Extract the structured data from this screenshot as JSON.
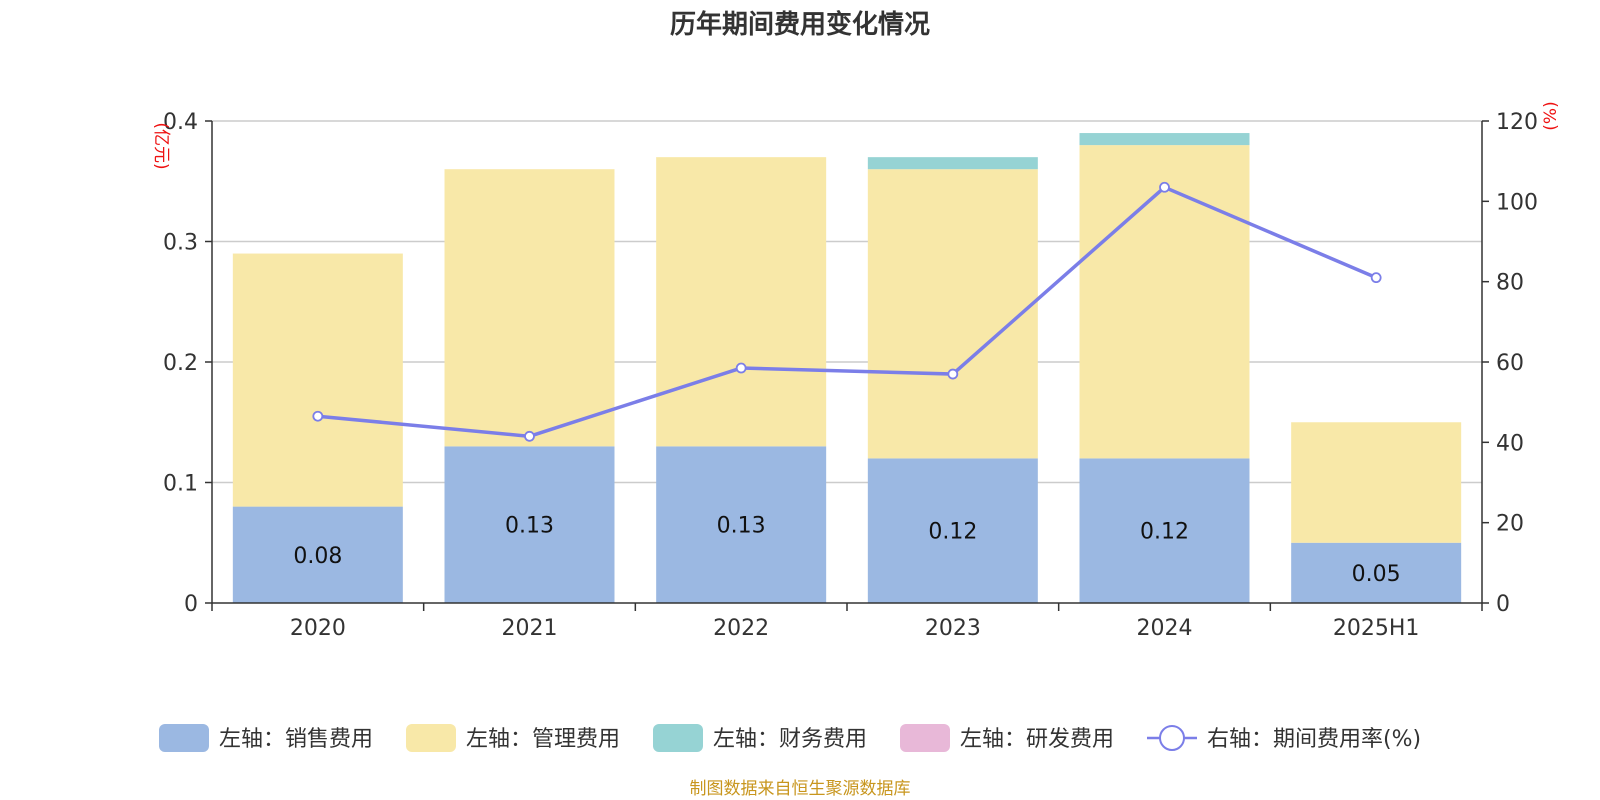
{
  "title": "历年期间费用变化情况",
  "source": "制图数据来自恒生聚源数据库",
  "chart_data": {
    "type": "bar",
    "stacked": true,
    "title": "历年期间费用变化情况",
    "categories": [
      "2020",
      "2021",
      "2022",
      "2023",
      "2024",
      "2025H1"
    ],
    "y_left": {
      "unit": "(亿元)",
      "ylim": [
        0,
        0.4
      ],
      "ticks": [
        "0",
        "0.1",
        "0.2",
        "0.3",
        "0.4"
      ]
    },
    "y_right": {
      "unit": "(%)",
      "ylim": [
        0,
        120
      ],
      "ticks": [
        "0",
        "20",
        "40",
        "60",
        "80",
        "100",
        "120"
      ]
    },
    "grid": true,
    "legend_position": "bottom",
    "series": [
      {
        "name": "左轴：销售费用",
        "axis": "left",
        "type": "bar",
        "color": "#9bb8e2",
        "values": [
          0.08,
          0.13,
          0.13,
          0.12,
          0.12,
          0.05
        ],
        "labels": [
          "0.08",
          "0.13",
          "0.13",
          "0.12",
          "0.12",
          "0.05"
        ]
      },
      {
        "name": "左轴：管理费用",
        "axis": "left",
        "type": "bar",
        "color": "#f8e8a8",
        "values": [
          0.21,
          0.23,
          0.24,
          0.24,
          0.26,
          0.1
        ]
      },
      {
        "name": "左轴：财务费用",
        "axis": "left",
        "type": "bar",
        "color": "#96d3d4",
        "values": [
          0,
          0,
          0,
          0.01,
          0.01,
          0
        ]
      },
      {
        "name": "左轴：研发费用",
        "axis": "left",
        "type": "bar",
        "color": "#e8b8d8",
        "values": [
          0,
          0,
          0,
          0,
          0,
          0
        ]
      },
      {
        "name": "右轴：期间费用率(%)",
        "axis": "right",
        "type": "line",
        "color": "#7b7ee8",
        "values": [
          46.5,
          41.5,
          58.5,
          57.0,
          103.5,
          81.0
        ]
      }
    ]
  }
}
